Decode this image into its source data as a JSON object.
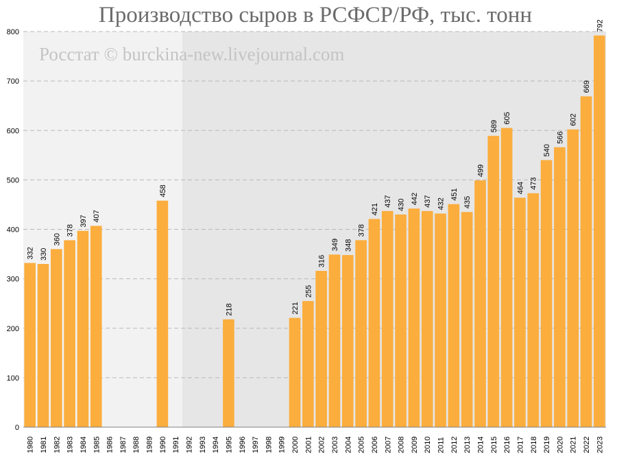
{
  "chart_data": {
    "type": "bar",
    "title": "Производство сыров в РСФСР/РФ, тыс. тонн",
    "watermark": "Росстат © burckina-new.livejournal.com",
    "ylim": [
      0,
      800
    ],
    "yticks": [
      0,
      100,
      200,
      300,
      400,
      500,
      600,
      700,
      800
    ],
    "grid": true,
    "bar_color": "#fbad3d",
    "background_left": "#f2f2f2",
    "background_right": "#e6e6e6",
    "categories": [
      "1980",
      "1981",
      "1982",
      "1983",
      "1984",
      "1985",
      "1986",
      "1987",
      "1988",
      "1989",
      "1990",
      "1991",
      "1992",
      "1993",
      "1994",
      "1995",
      "1996",
      "1997",
      "1998",
      "1999",
      "2000",
      "2001",
      "2002",
      "2003",
      "2004",
      "2005",
      "2006",
      "2007",
      "2008",
      "2009",
      "2010",
      "2011",
      "2012",
      "2013",
      "2014",
      "2015",
      "2016",
      "2017",
      "2018",
      "2019",
      "2020",
      "2021",
      "2022",
      "2023"
    ],
    "values": [
      332,
      330,
      360,
      378,
      397,
      407,
      null,
      null,
      null,
      null,
      458,
      null,
      null,
      null,
      null,
      218,
      null,
      null,
      null,
      null,
      221,
      255,
      316,
      349,
      348,
      378,
      421,
      437,
      430,
      442,
      437,
      432,
      451,
      435,
      499,
      589,
      605,
      464,
      473,
      540,
      566,
      602,
      669,
      792
    ]
  }
}
